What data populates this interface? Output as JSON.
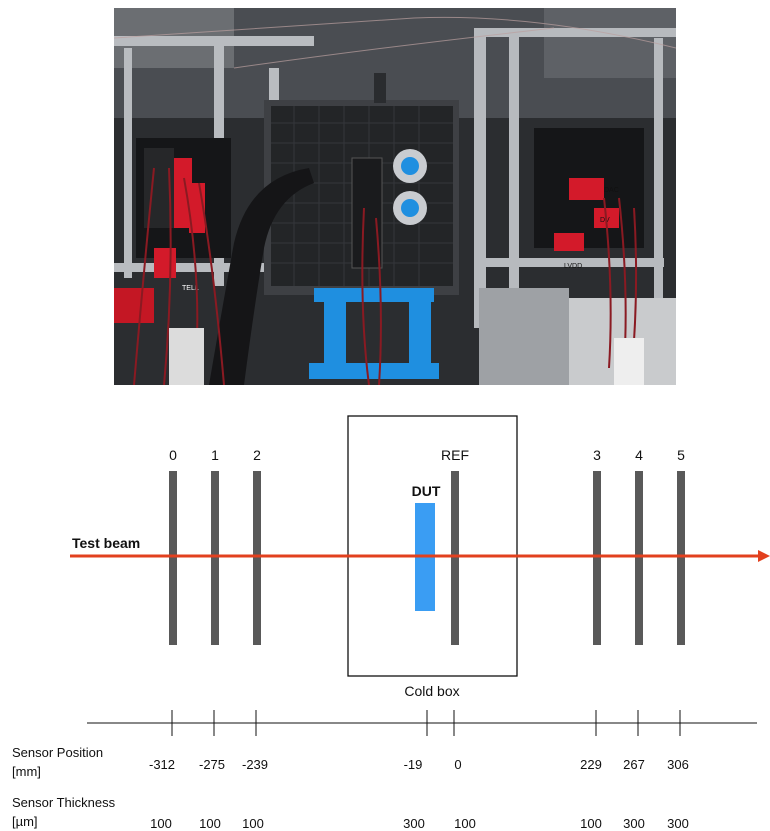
{
  "beam_label": "Test beam",
  "dut_label": "DUT",
  "ref_label": "REF",
  "cold_box_label": "Cold box",
  "planes": [
    {
      "label": "0",
      "position": "-312",
      "thickness": "100"
    },
    {
      "label": "1",
      "position": "-275",
      "thickness": "100"
    },
    {
      "label": "2",
      "position": "-239",
      "thickness": "100"
    },
    {
      "label": "",
      "position": "-19",
      "thickness": "300"
    },
    {
      "label": "REF",
      "position": "0",
      "thickness": "100"
    },
    {
      "label": "3",
      "position": "229",
      "thickness": "100"
    },
    {
      "label": "4",
      "position": "267",
      "thickness": "300"
    },
    {
      "label": "5",
      "position": "306",
      "thickness": "300"
    }
  ],
  "row_labels": {
    "position_line1": "Sensor Position",
    "position_line2": "[mm]",
    "thickness_line1": "Sensor Thickness",
    "thickness_line2": "[µm]"
  },
  "photo_labels": {
    "cable_tag_left": "TELL",
    "cable_tag_right_1": "DAC",
    "cable_tag_right_2": "DV",
    "cable_tag_right_3": "LVDD"
  },
  "colors": {
    "beam": "#e2401e",
    "sensor": "#595959",
    "dut": "#3a9df3",
    "box_stroke": "#111111",
    "photo_stand_blue": "#1f8fe0"
  }
}
